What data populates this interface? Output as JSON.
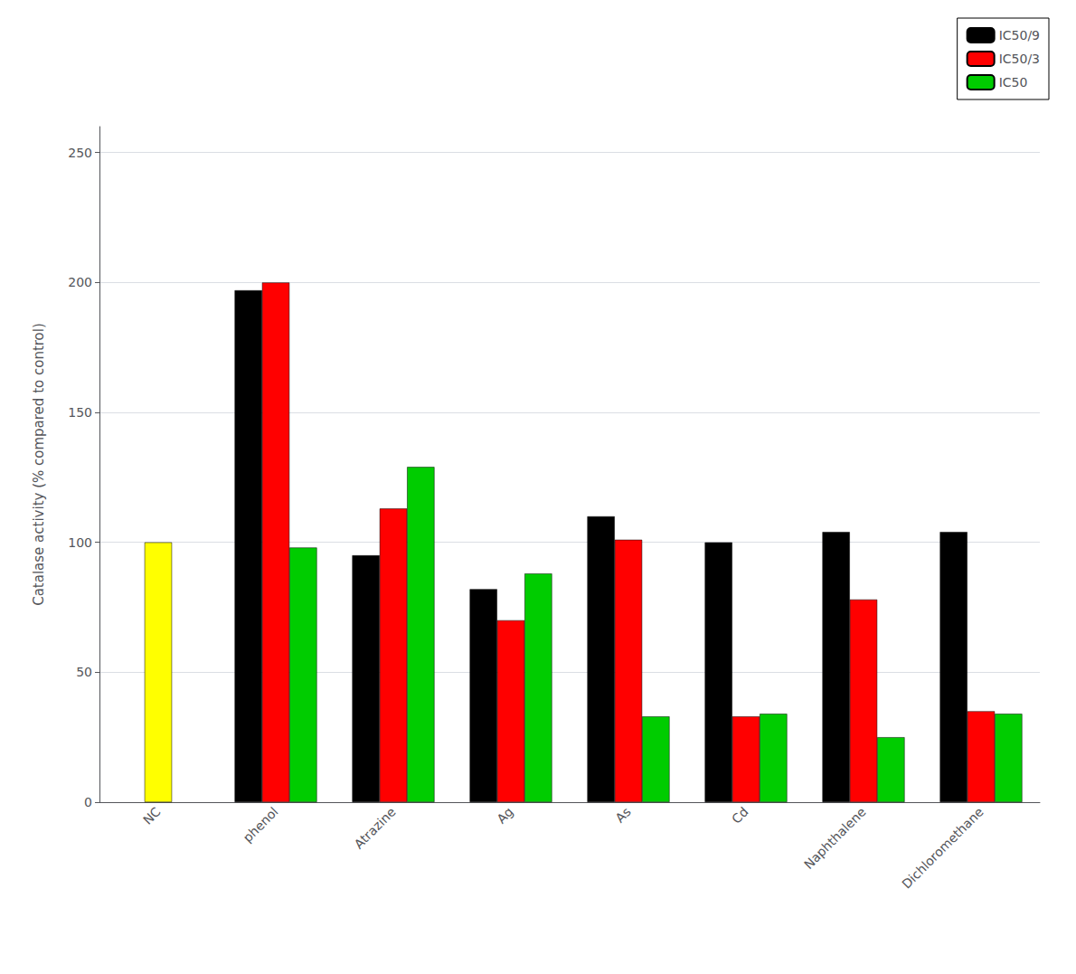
{
  "chart_data": {
    "type": "bar",
    "categories": [
      "NC",
      "phenol",
      "Atrazine",
      "Ag",
      "As",
      "Cd",
      "Naphthalene",
      "Dichloromethane"
    ],
    "series": [
      {
        "color": "#ffff00",
        "values": [
          100,
          null,
          null,
          null,
          null,
          null,
          null,
          null
        ]
      },
      {
        "name": "IC50/9",
        "color": "#000000",
        "values": [
          null,
          197,
          95,
          82,
          110,
          100,
          104,
          104
        ]
      },
      {
        "name": "IC50/3",
        "color": "#ff0000",
        "values": [
          null,
          200,
          113,
          70,
          101,
          33,
          78,
          35
        ]
      },
      {
        "name": "IC50",
        "color": "#00cc00",
        "values": [
          null,
          98,
          129,
          88,
          33,
          34,
          25,
          34
        ]
      }
    ],
    "ylabel": "Catalase activity (% compared to control)",
    "ylim": [
      0,
      260
    ],
    "yticks": [
      0,
      50,
      100,
      150,
      200,
      250
    ],
    "grid": true,
    "legend": "upper right"
  }
}
